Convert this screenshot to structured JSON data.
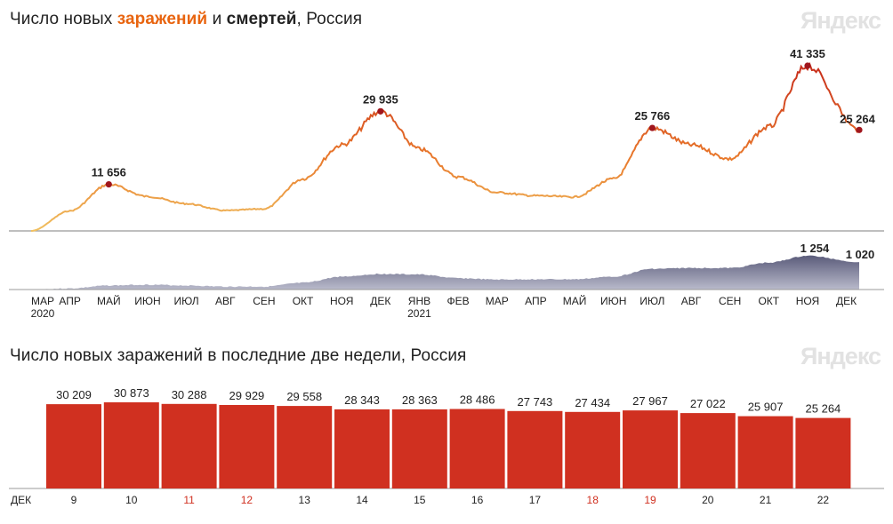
{
  "top_chart": {
    "title_parts": {
      "p1": "Число новых ",
      "p2": "заражений",
      "p3": " и ",
      "p4": "смертей",
      "p5": ", Россия"
    },
    "logo": "Яндекс"
  },
  "bottom_chart": {
    "title": "Число новых заражений в последние две недели, Россия",
    "logo": "Яндекс"
  },
  "colors": {
    "cases_low": "#f0c060",
    "cases_mid": "#e8762a",
    "cases_high": "#c62a1a",
    "deaths_fill": "#4c4d6e",
    "deaths_fill_light": "#b9bacb",
    "marker": "#a0161d",
    "bar": "#d03020",
    "weekend": "#d03020",
    "axis": "#999999"
  },
  "chart_data": [
    {
      "type": "line",
      "series": [
        {
          "name": "заражений",
          "x": [
            "2020-03",
            "2020-04",
            "2020-05",
            "2020-06",
            "2020-07",
            "2020-08",
            "2020-09",
            "2020-10",
            "2020-11",
            "2020-12",
            "2021-01",
            "2021-02",
            "2021-03",
            "2021-04",
            "2021-05",
            "2021-06",
            "2021-07",
            "2021-08",
            "2021-09",
            "2021-10",
            "2021-11",
            "2021-12"
          ],
          "values": [
            0,
            5000,
            10500,
            8600,
            6800,
            5100,
            5500,
            13000,
            21500,
            28500,
            20500,
            13500,
            9600,
            8800,
            8500,
            13000,
            24500,
            21500,
            18000,
            26000,
            39000,
            25264
          ]
        }
      ],
      "annotations": [
        {
          "label": "11 656",
          "date": "2020-05",
          "value": 11656
        },
        {
          "label": "29 935",
          "date": "2020-12",
          "value": 29935
        },
        {
          "label": "25 766",
          "date": "2021-07",
          "value": 25766
        },
        {
          "label": "41 335",
          "date": "2021-11",
          "value": 41335
        },
        {
          "label": "25 264",
          "date": "2021-12",
          "value": 25264
        }
      ]
    },
    {
      "type": "area",
      "series": [
        {
          "name": "смертей",
          "x": [
            "2020-03",
            "2020-04",
            "2020-05",
            "2020-06",
            "2020-07",
            "2020-08",
            "2020-09",
            "2020-10",
            "2020-11",
            "2020-12",
            "2021-01",
            "2021-02",
            "2021-03",
            "2021-04",
            "2021-05",
            "2021-06",
            "2021-07",
            "2021-08",
            "2021-09",
            "2021-10",
            "2021-11",
            "2021-12"
          ],
          "values": [
            0,
            40,
            150,
            180,
            150,
            110,
            110,
            250,
            480,
            580,
            560,
            420,
            370,
            380,
            380,
            480,
            770,
            800,
            800,
            1000,
            1254,
            1020
          ]
        }
      ],
      "annotations": [
        {
          "label": "1 254",
          "date": "2021-11",
          "value": 1254
        },
        {
          "label": "1 020",
          "date": "2021-12",
          "value": 1020
        }
      ],
      "x_ticks": [
        {
          "label": "МАР",
          "sub": "2020"
        },
        {
          "label": "АПР",
          "sub": ""
        },
        {
          "label": "МАЙ",
          "sub": ""
        },
        {
          "label": "ИЮН",
          "sub": ""
        },
        {
          "label": "ИЮЛ",
          "sub": ""
        },
        {
          "label": "АВГ",
          "sub": ""
        },
        {
          "label": "СЕН",
          "sub": ""
        },
        {
          "label": "ОКТ",
          "sub": ""
        },
        {
          "label": "НОЯ",
          "sub": ""
        },
        {
          "label": "ДЕК",
          "sub": ""
        },
        {
          "label": "ЯНВ",
          "sub": "2021"
        },
        {
          "label": "ФЕВ",
          "sub": ""
        },
        {
          "label": "МАР",
          "sub": ""
        },
        {
          "label": "АПР",
          "sub": ""
        },
        {
          "label": "МАЙ",
          "sub": ""
        },
        {
          "label": "ИЮН",
          "sub": ""
        },
        {
          "label": "ИЮЛ",
          "sub": ""
        },
        {
          "label": "АВГ",
          "sub": ""
        },
        {
          "label": "СЕН",
          "sub": ""
        },
        {
          "label": "ОКТ",
          "sub": ""
        },
        {
          "label": "НОЯ",
          "sub": ""
        },
        {
          "label": "ДЕК",
          "sub": ""
        }
      ]
    },
    {
      "type": "bar",
      "month_label": "ДЕК",
      "categories": [
        "9",
        "10",
        "11",
        "12",
        "13",
        "14",
        "15",
        "16",
        "17",
        "18",
        "19",
        "20",
        "21",
        "22"
      ],
      "labels": [
        "30 209",
        "30 873",
        "30 288",
        "29 929",
        "29 558",
        "28 343",
        "28 363",
        "28 486",
        "27 743",
        "27 434",
        "27 967",
        "27 022",
        "25 907",
        "25 264"
      ],
      "values": [
        30209,
        30873,
        30288,
        29929,
        29558,
        28343,
        28363,
        28486,
        27743,
        27434,
        27967,
        27022,
        25907,
        25264
      ],
      "weekend": [
        false,
        false,
        true,
        true,
        false,
        false,
        false,
        false,
        false,
        true,
        true,
        false,
        false,
        false
      ],
      "ylim": [
        0,
        31000
      ]
    }
  ]
}
